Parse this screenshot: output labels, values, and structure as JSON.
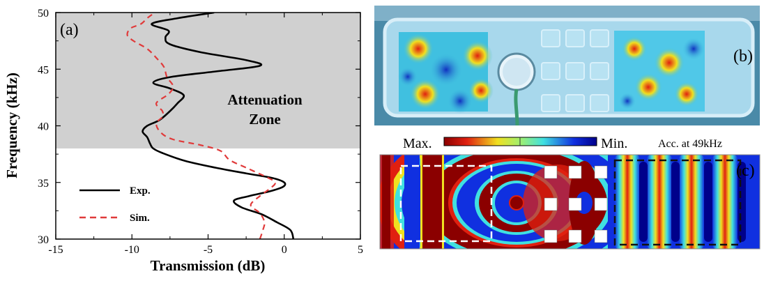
{
  "chart_data": [
    {
      "type": "line",
      "panel_label": "(a)",
      "xlabel": "Transmission (dB)",
      "ylabel": "Frequency (kHz)",
      "xlim": [
        -15,
        5
      ],
      "ylim": [
        30,
        50
      ],
      "x_ticks": [
        -15,
        -10,
        -5,
        0,
        5
      ],
      "y_ticks": [
        30,
        35,
        40,
        45,
        50
      ],
      "grid": false,
      "legend_position": "bottom-left",
      "shaded_region": {
        "y_from": 38,
        "y_to": 50,
        "label_line1": "Attenuation",
        "label_line2": "Zone"
      },
      "series": [
        {
          "name": "Exp.",
          "style": "solid",
          "color": "#000000",
          "points": [
            [
              0.6,
              30.0
            ],
            [
              0.4,
              30.8
            ],
            [
              -0.5,
              31.5
            ],
            [
              -1.5,
              32.2
            ],
            [
              -2.8,
              32.8
            ],
            [
              -3.3,
              33.4
            ],
            [
              -2.3,
              33.8
            ],
            [
              -1.0,
              34.2
            ],
            [
              -0.1,
              34.6
            ],
            [
              0.0,
              35.0
            ],
            [
              -0.8,
              35.4
            ],
            [
              -2.5,
              35.8
            ],
            [
              -4.5,
              36.3
            ],
            [
              -6.5,
              36.9
            ],
            [
              -8.0,
              37.6
            ],
            [
              -8.6,
              38.0
            ],
            [
              -8.8,
              38.4
            ],
            [
              -9.0,
              39.0
            ],
            [
              -9.3,
              39.5
            ],
            [
              -9.0,
              40.0
            ],
            [
              -8.2,
              40.5
            ],
            [
              -7.5,
              41.3
            ],
            [
              -7.0,
              42.0
            ],
            [
              -6.6,
              42.7
            ],
            [
              -7.5,
              43.3
            ],
            [
              -8.6,
              43.8
            ],
            [
              -7.5,
              44.3
            ],
            [
              -4.5,
              44.8
            ],
            [
              -1.6,
              45.3
            ],
            [
              -2.5,
              45.8
            ],
            [
              -5.5,
              46.5
            ],
            [
              -7.5,
              47.2
            ],
            [
              -7.8,
              47.8
            ],
            [
              -7.6,
              48.4
            ],
            [
              -8.7,
              49.0
            ],
            [
              -7.0,
              49.5
            ],
            [
              -4.6,
              50.0
            ]
          ]
        },
        {
          "name": "Sim.",
          "style": "dashed",
          "color": "#e03a3a",
          "points": [
            [
              -1.6,
              30.0
            ],
            [
              -1.4,
              30.8
            ],
            [
              -1.3,
              31.5
            ],
            [
              -1.6,
              32.3
            ],
            [
              -2.2,
              33.0
            ],
            [
              -1.6,
              33.8
            ],
            [
              -0.9,
              34.5
            ],
            [
              -0.6,
              35.0
            ],
            [
              -1.2,
              35.5
            ],
            [
              -2.5,
              36.3
            ],
            [
              -3.6,
              37.0
            ],
            [
              -4.2,
              37.8
            ],
            [
              -5.5,
              38.3
            ],
            [
              -7.3,
              38.8
            ],
            [
              -8.1,
              39.4
            ],
            [
              -8.4,
              40.2
            ],
            [
              -8.0,
              40.8
            ],
            [
              -8.0,
              41.3
            ],
            [
              -8.4,
              42.0
            ],
            [
              -7.6,
              42.8
            ],
            [
              -7.3,
              43.5
            ],
            [
              -7.7,
              44.3
            ],
            [
              -7.9,
              45.2
            ],
            [
              -8.4,
              46.0
            ],
            [
              -9.0,
              46.8
            ],
            [
              -9.9,
              47.5
            ],
            [
              -10.3,
              48.0
            ],
            [
              -10.1,
              48.6
            ],
            [
              -9.4,
              49.0
            ],
            [
              -9.0,
              49.5
            ],
            [
              -8.6,
              49.9
            ]
          ]
        }
      ]
    },
    {
      "type": "heatmap",
      "panel_label": "(b)",
      "description_colormap": "jet"
    },
    {
      "type": "heatmap",
      "panel_label": "(c)",
      "colorbar": {
        "left_label": "Max.",
        "right_label": "Min.",
        "caption": "Acc. at 49kHz"
      }
    }
  ],
  "colors": {
    "shade": "#d0d0d0",
    "exp_line": "#000000",
    "sim_line": "#e03a3a",
    "jet_dark_red": "#8b0000",
    "jet_red": "#e02010",
    "jet_yellow": "#f0e020",
    "jet_cyan": "#40e0e0",
    "jet_blue": "#1030e0",
    "jet_dark_blue": "#00008b"
  }
}
